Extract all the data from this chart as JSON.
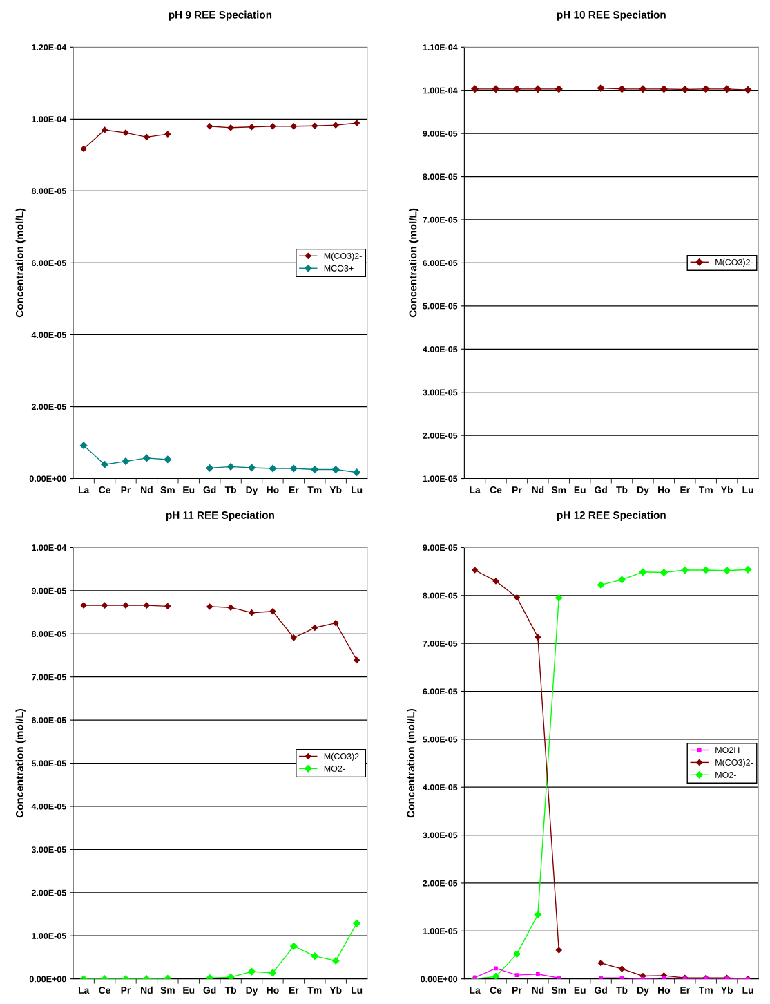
{
  "chart_data": [
    {
      "type": "line",
      "title": "pH 9 REE Speciation",
      "ylabel": "Concentration (mol/L)",
      "categories": [
        "La",
        "Ce",
        "Pr",
        "Nd",
        "Sm",
        "Eu",
        "Gd",
        "Tb",
        "Dy",
        "Ho",
        "Er",
        "Tm",
        "Yb",
        "Lu"
      ],
      "series": [
        {
          "name": "M(CO3)2-",
          "color": "#800000",
          "values": [
            9.17e-05,
            9.7e-05,
            9.62e-05,
            9.5e-05,
            9.58e-05,
            null,
            9.8e-05,
            9.76e-05,
            9.78e-05,
            9.8e-05,
            9.8e-05,
            9.81e-05,
            9.83e-05,
            9.89e-05
          ]
        },
        {
          "name": "MCO3+",
          "color": "#008080",
          "values": [
            9.2e-06,
            3.9e-06,
            4.8e-06,
            5.7e-06,
            5.3e-06,
            null,
            2.9e-06,
            3.3e-06,
            3e-06,
            2.8e-06,
            2.8e-06,
            2.5e-06,
            2.5e-06,
            1.7e-06
          ]
        }
      ],
      "ylim": [
        0,
        0.00012
      ],
      "yticks": [
        {
          "value": 0,
          "label": "0.00E+00"
        },
        {
          "value": 2e-05,
          "label": "2.00E-05"
        },
        {
          "value": 4e-05,
          "label": "4.00E-05"
        },
        {
          "value": 6e-05,
          "label": "6.00E-05"
        },
        {
          "value": 8e-05,
          "label": "8.00E-05"
        },
        {
          "value": 0.0001,
          "label": "1.00E-04"
        },
        {
          "value": 0.00012,
          "label": "1.20E-04"
        }
      ],
      "grid": "y",
      "legend": "right",
      "marker": "diamond",
      "line_style": "solid"
    },
    {
      "type": "line",
      "title": "pH 10 REE Speciation",
      "ylabel": "Concentration (mol/L)",
      "categories": [
        "La",
        "Ce",
        "Pr",
        "Nd",
        "Sm",
        "Eu",
        "Gd",
        "Tb",
        "Dy",
        "Ho",
        "Er",
        "Tm",
        "Yb",
        "Lu"
      ],
      "series": [
        {
          "name": "M(CO3)2-",
          "color": "#800000",
          "values": [
            0.0001003,
            0.0001003,
            0.0001003,
            0.0001003,
            0.0001003,
            null,
            0.0001005,
            0.0001003,
            0.0001003,
            0.0001003,
            0.0001002,
            0.0001003,
            0.0001003,
            0.0001001
          ]
        }
      ],
      "ylim": [
        1e-05,
        0.00011
      ],
      "yticks": [
        {
          "value": 1e-05,
          "label": "1.00E-05"
        },
        {
          "value": 2e-05,
          "label": "2.00E-05"
        },
        {
          "value": 3e-05,
          "label": "3.00E-05"
        },
        {
          "value": 4e-05,
          "label": "4.00E-05"
        },
        {
          "value": 5e-05,
          "label": "5.00E-05"
        },
        {
          "value": 6e-05,
          "label": "6.00E-05"
        },
        {
          "value": 7e-05,
          "label": "7.00E-05"
        },
        {
          "value": 8e-05,
          "label": "8.00E-05"
        },
        {
          "value": 9e-05,
          "label": "9.00E-05"
        },
        {
          "value": 0.0001,
          "label": "1.00E-04"
        },
        {
          "value": 0.00011,
          "label": "1.10E-04"
        }
      ],
      "grid": "y",
      "legend": "right",
      "marker": "diamond",
      "line_style": "solid"
    },
    {
      "type": "line",
      "title": "pH 11 REE Speciation",
      "ylabel": "Concentration (mol/L)",
      "categories": [
        "La",
        "Ce",
        "Pr",
        "Nd",
        "Sm",
        "Eu",
        "Gd",
        "Tb",
        "Dy",
        "Ho",
        "Er",
        "Tm",
        "Yb",
        "Lu"
      ],
      "series": [
        {
          "name": "M(CO3)2-",
          "color": "#800000",
          "values": [
            8.66e-05,
            8.66e-05,
            8.66e-05,
            8.66e-05,
            8.64e-05,
            null,
            8.63e-05,
            8.61e-05,
            8.49e-05,
            8.52e-05,
            7.91e-05,
            8.14e-05,
            8.25e-05,
            7.39e-05
          ]
        },
        {
          "name": "MO2-",
          "color": "#00ff00",
          "values": [
            0,
            0,
            0,
            0,
            1e-07,
            null,
            2e-07,
            4e-07,
            1.7e-06,
            1.4e-06,
            7.6e-06,
            5.3e-06,
            4.2e-06,
            1.29e-05
          ]
        }
      ],
      "ylim": [
        0,
        0.0001
      ],
      "yticks": [
        {
          "value": 0,
          "label": "0.00E+00"
        },
        {
          "value": 1e-05,
          "label": "1.00E-05"
        },
        {
          "value": 2e-05,
          "label": "2.00E-05"
        },
        {
          "value": 3e-05,
          "label": "3.00E-05"
        },
        {
          "value": 4e-05,
          "label": "4.00E-05"
        },
        {
          "value": 5e-05,
          "label": "5.00E-05"
        },
        {
          "value": 6e-05,
          "label": "6.00E-05"
        },
        {
          "value": 7e-05,
          "label": "7.00E-05"
        },
        {
          "value": 8e-05,
          "label": "8.00E-05"
        },
        {
          "value": 9e-05,
          "label": "9.00E-05"
        },
        {
          "value": 0.0001,
          "label": "1.00E-04"
        }
      ],
      "grid": "y",
      "legend": "right",
      "marker": "diamond",
      "line_style": "solid"
    },
    {
      "type": "line",
      "title": "pH 12 REE Speciation",
      "ylabel": "Concentration (mol/L)",
      "categories": [
        "La",
        "Ce",
        "Pr",
        "Nd",
        "Sm",
        "Eu",
        "Gd",
        "Tb",
        "Dy",
        "Ho",
        "Er",
        "Tm",
        "Yb",
        "Lu"
      ],
      "series": [
        {
          "name": "MO2H",
          "color": "#ff00ff",
          "marker": "square",
          "values": [
            3e-07,
            2.2e-06,
            8e-07,
            1e-06,
            2e-07,
            null,
            2e-07,
            2e-07,
            0,
            2e-07,
            1e-07,
            1e-07,
            1e-07,
            0
          ]
        },
        {
          "name": "M(CO3)2-",
          "color": "#800000",
          "values": [
            8.53e-05,
            8.3e-05,
            7.96e-05,
            7.13e-05,
            6e-06,
            null,
            3.3e-06,
            2.1e-06,
            6e-07,
            7e-07,
            2e-07,
            2e-07,
            2e-07,
            0
          ]
        },
        {
          "name": "MO2-",
          "color": "#00ff00",
          "values": [
            0,
            5e-07,
            5.2e-06,
            1.34e-05,
            7.95e-05,
            null,
            8.22e-05,
            8.33e-05,
            8.49e-05,
            8.48e-05,
            8.53e-05,
            8.53e-05,
            8.52e-05,
            8.54e-05
          ]
        }
      ],
      "ylim": [
        0,
        9e-05
      ],
      "yticks": [
        {
          "value": 0,
          "label": "0.00E+00"
        },
        {
          "value": 1e-05,
          "label": "1.00E-05"
        },
        {
          "value": 2e-05,
          "label": "2.00E-05"
        },
        {
          "value": 3e-05,
          "label": "3.00E-05"
        },
        {
          "value": 4e-05,
          "label": "4.00E-05"
        },
        {
          "value": 5e-05,
          "label": "5.00E-05"
        },
        {
          "value": 6e-05,
          "label": "6.00E-05"
        },
        {
          "value": 7e-05,
          "label": "7.00E-05"
        },
        {
          "value": 8e-05,
          "label": "8.00E-05"
        },
        {
          "value": 9e-05,
          "label": "9.00E-05"
        }
      ],
      "grid": "y",
      "legend": "right",
      "marker": "diamond",
      "line_style": "solid"
    }
  ]
}
